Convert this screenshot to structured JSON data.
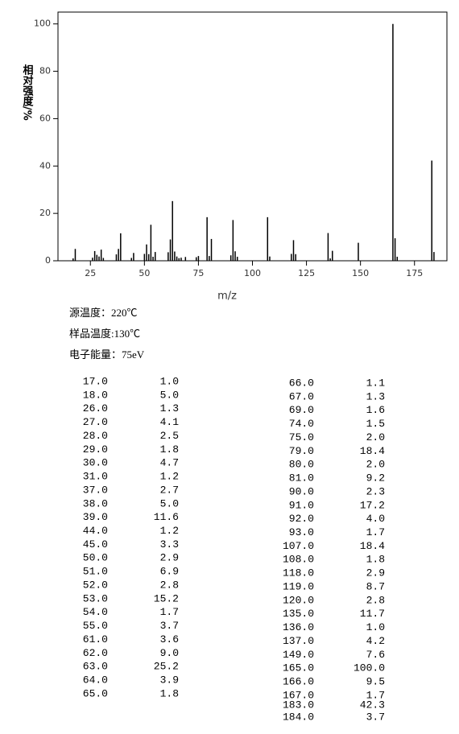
{
  "chart_data": {
    "type": "bar",
    "x_label": "m/z",
    "y_label": "相对强度/%",
    "x": [
      17,
      18,
      26,
      27,
      28,
      29,
      30,
      31,
      37,
      38,
      39,
      44,
      45,
      50,
      51,
      52,
      53,
      54,
      55,
      61,
      62,
      63,
      64,
      65,
      66,
      67,
      69,
      74,
      75,
      79,
      80,
      81,
      90,
      91,
      92,
      93,
      107,
      108,
      118,
      119,
      120,
      135,
      136,
      137,
      149,
      165,
      166,
      167,
      183,
      184
    ],
    "x_labels": [
      "17.0",
      "18.0",
      "26.0",
      "27.0",
      "28.0",
      "29.0",
      "30.0",
      "31.0",
      "37.0",
      "38.0",
      "39.0",
      "44.0",
      "45.0",
      "50.0",
      "51.0",
      "52.0",
      "53.0",
      "54.0",
      "55.0",
      "61.0",
      "62.0",
      "63.0",
      "64.0",
      "65.0",
      "66.0",
      "67.0",
      "69.0",
      "74.0",
      "75.0",
      "79.0",
      "80.0",
      "81.0",
      "90.0",
      "91.0",
      "92.0",
      "93.0",
      "107.0",
      "108.0",
      "118.0",
      "119.0",
      "120.0",
      "135.0",
      "136.0",
      "137.0",
      "149.0",
      "165.0",
      "166.0",
      "167.0",
      "183.0",
      "184.0"
    ],
    "values": [
      1.0,
      5.0,
      1.3,
      4.1,
      2.5,
      1.8,
      4.7,
      1.2,
      2.7,
      5.0,
      11.6,
      1.2,
      3.3,
      2.9,
      6.9,
      2.8,
      15.2,
      1.7,
      3.7,
      3.6,
      9.0,
      25.2,
      3.9,
      1.8,
      1.1,
      1.3,
      1.6,
      1.5,
      2.0,
      18.4,
      2.0,
      9.2,
      2.3,
      17.2,
      4.0,
      1.7,
      18.4,
      1.8,
      2.9,
      8.7,
      2.8,
      11.7,
      1.0,
      4.2,
      7.6,
      100.0,
      9.5,
      1.7,
      42.3,
      3.7
    ],
    "value_labels": [
      "1.0",
      "5.0",
      "1.3",
      "4.1",
      "2.5",
      "1.8",
      "4.7",
      "1.2",
      "2.7",
      "5.0",
      "11.6",
      "1.2",
      "3.3",
      "2.9",
      "6.9",
      "2.8",
      "15.2",
      "1.7",
      "3.7",
      "3.6",
      "9.0",
      "25.2",
      "3.9",
      "1.8",
      "1.1",
      "1.3",
      "1.6",
      "1.5",
      "2.0",
      "18.4",
      "2.0",
      "9.2",
      "2.3",
      "17.2",
      "4.0",
      "1.7",
      "18.4",
      "1.8",
      "2.9",
      "8.7",
      "2.8",
      "11.7",
      "1.0",
      "4.2",
      "7.6",
      "100.0",
      "9.5",
      "1.7",
      "42.3",
      "3.7"
    ],
    "color": "#000000",
    "xlim": [
      10,
      190
    ],
    "xticks": [
      25,
      50,
      75,
      100,
      125,
      150,
      175
    ],
    "ylim": [
      0,
      105
    ],
    "yticks": [
      0,
      20,
      40,
      60,
      80,
      100
    ]
  },
  "info": [
    "源温度：220℃",
    "样品温度:130℃",
    "电子能量：75eV"
  ]
}
